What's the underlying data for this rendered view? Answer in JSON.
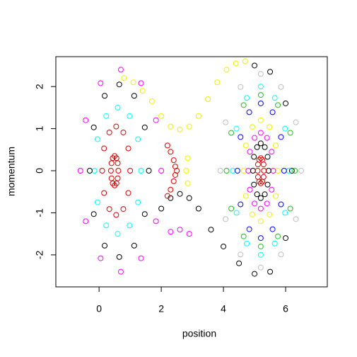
{
  "chart_data": {
    "type": "scatter",
    "xlabel": "position",
    "ylabel": "momentum",
    "xlim": [
      -1.39,
      7.34
    ],
    "ylim": [
      -2.76,
      2.71
    ],
    "xticks": [
      0,
      2,
      4,
      6
    ],
    "yticks": [
      -2,
      -1,
      0,
      1,
      2
    ],
    "series": [
      {
        "color": "#dd0000",
        "x": [
          0.62,
          0.6,
          0.56,
          0.5,
          0.44,
          0.4,
          0.38,
          0.4,
          0.44,
          0.5,
          0.56,
          0.6
        ],
        "values": [
          0,
          0.18,
          0.3,
          0.35,
          0.3,
          0.18,
          0,
          -0.18,
          -0.3,
          -0.35,
          -0.3,
          -0.18
        ]
      },
      {
        "color": "#dd0000",
        "x": [
          1.0,
          0.94,
          0.78,
          0.55,
          0.33,
          0.16,
          0.1,
          0.16,
          0.33,
          0.55,
          0.78,
          0.94
        ],
        "values": [
          0,
          0.53,
          0.91,
          1.05,
          0.91,
          0.53,
          0,
          -0.53,
          -0.91,
          -1.05,
          -0.91,
          -0.53
        ]
      },
      {
        "color": "#00ffff",
        "x": [
          1.35,
          1.25,
          0.98,
          0.6,
          0.23,
          -0.05,
          -0.15,
          -0.05,
          0.23,
          0.6,
          0.98,
          1.25
        ],
        "values": [
          0,
          0.75,
          1.3,
          1.5,
          1.3,
          0.75,
          0,
          -0.75,
          -1.3,
          -1.5,
          -1.3,
          -0.75
        ]
      },
      {
        "color": "#000000",
        "x": [
          1.6,
          1.47,
          1.13,
          0.65,
          0.18,
          -0.17,
          -0.3,
          -0.17,
          0.18,
          0.65,
          1.13,
          1.47,
          2.0,
          2.3,
          2.6,
          2.9
        ],
        "values": [
          0,
          1.03,
          1.78,
          2.05,
          1.78,
          1.03,
          0,
          -1.03,
          -1.78,
          -2.05,
          -1.78,
          -1.03,
          -0.9,
          -0.65,
          -0.55,
          -0.65
        ]
      },
      {
        "color": "#ff00ff",
        "x": [
          2.0,
          1.83,
          1.35,
          0.7,
          0.05,
          -0.43,
          -0.6,
          -0.43,
          0.05,
          0.7,
          1.35,
          1.83,
          2.3,
          2.6,
          2.9
        ],
        "values": [
          0,
          1.2,
          2.08,
          2.4,
          2.08,
          1.2,
          0,
          -1.2,
          -2.08,
          -2.4,
          -2.08,
          -1.2,
          -1.45,
          -1.4,
          -1.5
        ]
      },
      {
        "color": "#dd0000",
        "x": [
          2.2,
          2.3,
          2.4,
          2.45,
          2.5,
          2.45,
          2.4,
          2.3,
          2.2
        ],
        "values": [
          0.6,
          0.45,
          0.25,
          0.1,
          0,
          -0.1,
          -0.25,
          -0.45,
          -0.6
        ]
      },
      {
        "color": "#f0f000",
        "x": [
          0.8,
          1.1,
          1.4,
          1.7,
          2.0,
          2.3,
          2.6,
          2.9,
          3.2,
          3.5,
          3.8,
          4.1,
          4.4,
          4.7,
          2.85,
          2.8,
          2.85
        ],
        "values": [
          2.2,
          2.1,
          1.9,
          1.65,
          1.3,
          1.05,
          0.98,
          1.05,
          1.3,
          1.7,
          2.1,
          2.4,
          2.55,
          2.6,
          0.3,
          0,
          -0.3
        ]
      },
      {
        "color": "#bebebe",
        "x": [
          6.5,
          6.33,
          5.85,
          5.2,
          4.55,
          4.07,
          3.9,
          4.07,
          4.55,
          5.2,
          5.85,
          6.33
        ],
        "values": [
          0,
          1.15,
          1.99,
          2.3,
          1.99,
          1.15,
          0,
          -1.15,
          -1.99,
          -2.3,
          -1.99,
          -1.15
        ]
      },
      {
        "color": "#000000",
        "x": [
          3.2,
          3.6,
          4.0,
          4.5,
          5.0,
          5.5,
          6.0,
          6.2,
          6.0,
          5.5,
          5.0
        ],
        "values": [
          -0.9,
          -1.4,
          -1.8,
          -2.2,
          -2.45,
          -2.4,
          -1.6,
          0,
          1.6,
          2.35,
          2.5
        ]
      },
      {
        "color": "#22bb22",
        "x": [
          6.3,
          6.15,
          5.75,
          5.2,
          4.65,
          4.25,
          4.1,
          4.25,
          4.65,
          5.2,
          5.75,
          6.15
        ],
        "values": [
          0,
          0.9,
          1.56,
          1.8,
          1.56,
          0.9,
          0,
          -0.9,
          -1.56,
          -1.8,
          -1.56,
          -0.9
        ]
      },
      {
        "color": "#00ffff",
        "x": [
          6.1,
          5.98,
          5.65,
          5.2,
          4.75,
          4.42,
          4.3,
          4.42,
          4.75,
          5.2,
          5.65,
          5.98
        ],
        "values": [
          0,
          1.0,
          1.73,
          2.0,
          1.73,
          1.0,
          0,
          -1.0,
          -1.73,
          -2.0,
          -1.73,
          -1.0
        ]
      },
      {
        "color": "#0000ff",
        "x": [
          5.95,
          5.85,
          5.58,
          5.2,
          4.83,
          4.55,
          4.45,
          4.55,
          4.83,
          5.2,
          5.58,
          5.85
        ],
        "values": [
          0,
          0.8,
          1.39,
          1.6,
          1.39,
          0.8,
          0,
          -0.8,
          -1.39,
          -1.6,
          -1.39,
          -0.8
        ]
      },
      {
        "color": "#f0f000",
        "x": [
          5.75,
          5.68,
          5.48,
          5.2,
          4.93,
          4.72,
          4.65,
          4.72,
          4.93,
          5.2,
          5.48,
          5.68
        ],
        "values": [
          0,
          0.6,
          1.04,
          1.2,
          1.04,
          0.6,
          0,
          -0.6,
          -1.04,
          -1.2,
          -1.04,
          -0.6
        ]
      },
      {
        "color": "#ff00ff",
        "x": [
          5.6,
          5.55,
          5.4,
          5.2,
          5.0,
          4.85,
          4.8,
          4.85,
          5.0,
          5.2,
          5.4,
          5.55
        ],
        "values": [
          0,
          0.45,
          0.78,
          0.9,
          0.78,
          0.45,
          0,
          -0.45,
          -0.78,
          -0.9,
          -0.78,
          -0.45
        ]
      },
      {
        "color": "#000000",
        "x": [
          5.45,
          5.42,
          5.33,
          5.2,
          5.08,
          4.98,
          4.95,
          4.98,
          5.08,
          5.2,
          5.33,
          5.42
        ],
        "values": [
          0,
          0.33,
          0.56,
          0.65,
          0.56,
          0.33,
          0,
          -0.33,
          -0.56,
          -0.65,
          -0.56,
          -0.33
        ]
      },
      {
        "color": "#dd0000",
        "x": [
          5.3,
          5.29,
          5.25,
          5.2,
          5.15,
          5.11,
          5.1,
          5.11,
          5.15,
          5.2,
          5.25,
          5.29
        ],
        "values": [
          0,
          0.15,
          0.26,
          0.3,
          0.26,
          0.15,
          0,
          -0.15,
          -0.26,
          -0.3,
          -0.26,
          -0.15
        ]
      }
    ]
  }
}
